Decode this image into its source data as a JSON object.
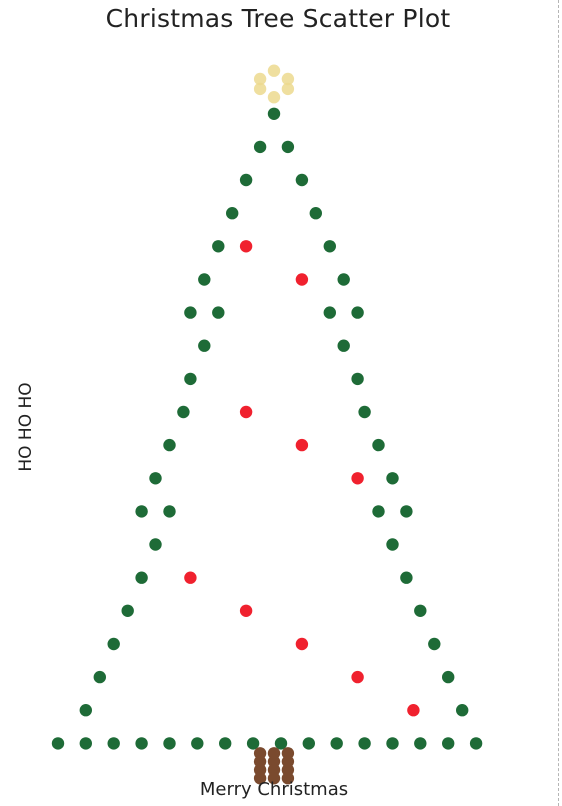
{
  "chart_data": {
    "type": "scatter",
    "title": "Christmas Tree Scatter Plot",
    "xlabel": "Merry Christmas",
    "ylabel": "HO HO HO",
    "xlim": [
      0,
      32
    ],
    "ylim": [
      -1.2,
      19.2
    ],
    "grid": false,
    "series": [
      {
        "color": "#1e6b37",
        "points": [
          [
            16,
            18
          ],
          [
            15,
            17
          ],
          [
            17,
            17
          ],
          [
            14,
            16
          ],
          [
            18,
            16
          ],
          [
            13,
            15
          ],
          [
            19,
            15
          ],
          [
            12,
            14
          ],
          [
            20,
            14
          ],
          [
            11,
            13
          ],
          [
            21,
            13
          ],
          [
            10,
            12
          ],
          [
            12,
            12
          ],
          [
            20,
            12
          ],
          [
            22,
            12
          ],
          [
            11,
            11
          ],
          [
            21,
            11
          ],
          [
            10,
            10
          ],
          [
            22,
            10
          ],
          [
            9.5,
            9
          ],
          [
            22.5,
            9
          ],
          [
            8.5,
            8
          ],
          [
            23.5,
            8
          ],
          [
            7.5,
            7
          ],
          [
            24.5,
            7
          ],
          [
            6.5,
            6
          ],
          [
            8.5,
            6
          ],
          [
            23.5,
            6
          ],
          [
            25.5,
            6
          ],
          [
            7.5,
            5
          ],
          [
            24.5,
            5
          ],
          [
            6.5,
            4
          ],
          [
            25.5,
            4
          ],
          [
            5.5,
            3
          ],
          [
            26.5,
            3
          ],
          [
            4.5,
            2
          ],
          [
            27.5,
            2
          ],
          [
            3.5,
            1
          ],
          [
            28.5,
            1
          ],
          [
            2.5,
            0
          ],
          [
            29.5,
            0
          ],
          [
            0.5,
            -1
          ],
          [
            2.5,
            -1
          ],
          [
            4.5,
            -1
          ],
          [
            6.5,
            -1
          ],
          [
            8.5,
            -1
          ],
          [
            10.5,
            -1
          ],
          [
            12.5,
            -1
          ],
          [
            14.5,
            -1
          ],
          [
            16.5,
            -1
          ],
          [
            18.5,
            -1
          ],
          [
            20.5,
            -1
          ],
          [
            22.5,
            -1
          ],
          [
            24.5,
            -1
          ],
          [
            26.5,
            -1
          ],
          [
            28.5,
            -1
          ],
          [
            30.5,
            -1
          ]
        ]
      },
      {
        "color": "#f0212e",
        "points": [
          [
            14,
            14
          ],
          [
            18,
            13
          ],
          [
            14,
            9
          ],
          [
            18,
            8
          ],
          [
            22,
            7
          ],
          [
            10,
            4
          ],
          [
            14,
            3
          ],
          [
            18,
            2
          ],
          [
            22,
            1
          ],
          [
            26,
            0
          ]
        ]
      },
      {
        "color": "#7a4a2e",
        "points": [
          [
            15,
            -1.3
          ],
          [
            16,
            -1.3
          ],
          [
            17,
            -1.3
          ],
          [
            15,
            -1.55
          ],
          [
            16,
            -1.55
          ],
          [
            17,
            -1.55
          ],
          [
            15,
            -1.8
          ],
          [
            16,
            -1.8
          ],
          [
            17,
            -1.8
          ],
          [
            15,
            -2.05
          ],
          [
            16,
            -2.05
          ],
          [
            17,
            -2.05
          ]
        ]
      },
      {
        "color": "#ecd98e",
        "points": [
          [
            16,
            19.3
          ],
          [
            15,
            19.05
          ],
          [
            17,
            19.05
          ],
          [
            15,
            18.75
          ],
          [
            17,
            18.75
          ],
          [
            16,
            18.5
          ]
        ]
      }
    ]
  }
}
